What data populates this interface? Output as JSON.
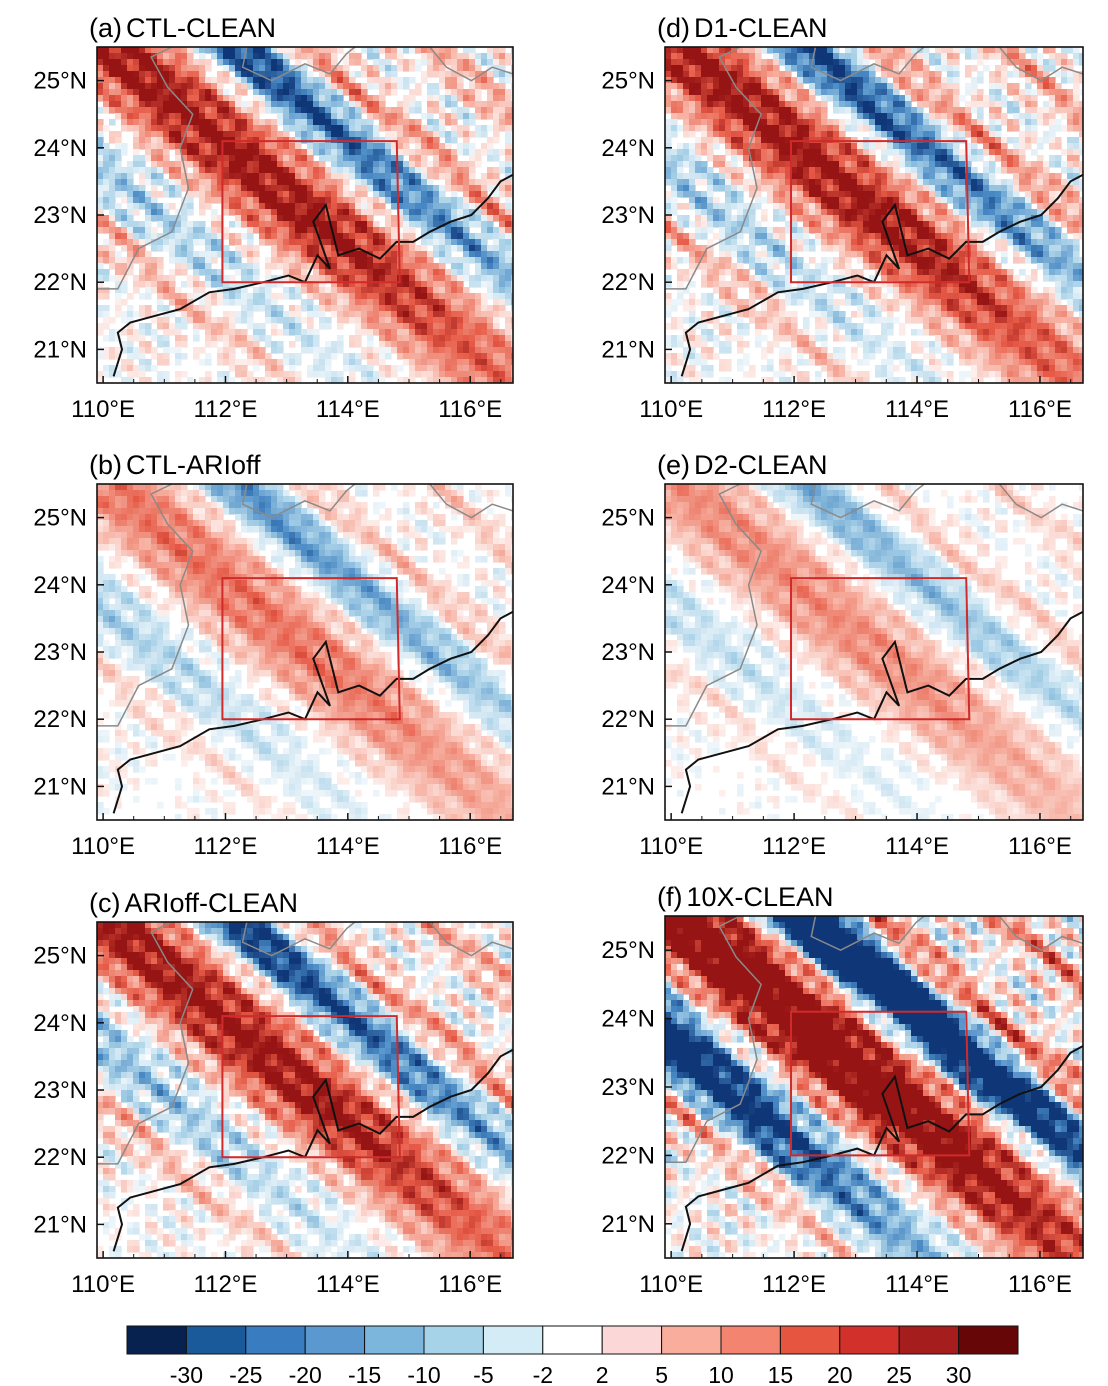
{
  "panels": [
    {
      "letter": "(a)",
      "name": "CTL-CLEAN",
      "intensity": 1.0,
      "blue_bias": 0.0
    },
    {
      "letter": "(b)",
      "name": "CTL-ARIoff",
      "intensity": 0.55,
      "blue_bias": 0.15
    },
    {
      "letter": "(c)",
      "name": "ARIoff-CLEAN",
      "intensity": 1.0,
      "blue_bias": 0.05
    },
    {
      "letter": "(d)",
      "name": "D1-CLEAN",
      "intensity": 1.0,
      "blue_bias": 0.0
    },
    {
      "letter": "(e)",
      "name": "D2-CLEAN",
      "intensity": 0.45,
      "blue_bias": 0.1
    },
    {
      "letter": "(f)",
      "name": "10X-CLEAN",
      "intensity": 1.35,
      "blue_bias": 0.45
    }
  ],
  "axes": {
    "lon_ticks": [
      "110°E",
      "112°E",
      "114°E",
      "116°E"
    ],
    "lon_values": [
      110,
      112,
      114,
      116
    ],
    "lat_ticks": [
      "25°N",
      "24°N",
      "23°N",
      "22°N",
      "21°N"
    ],
    "lat_values": [
      25,
      24,
      23,
      22,
      21
    ],
    "lon_range": [
      109.9,
      116.7
    ],
    "lat_range": [
      20.5,
      25.5
    ]
  },
  "box_region": {
    "lon": [
      111.95,
      114.85
    ],
    "lat": [
      22.0,
      24.1
    ]
  },
  "colorbar": {
    "labels": [
      "-30",
      "-25",
      "-20",
      "-15",
      "-10",
      "-5",
      "-2",
      "2",
      "5",
      "10",
      "15",
      "20",
      "25",
      "30"
    ],
    "colors": [
      "#08224f",
      "#1a5a9a",
      "#3a7cc0",
      "#5a98cf",
      "#7db6dc",
      "#a6d3e8",
      "#d3ecf6",
      "#ffffff",
      "#fcd7d7",
      "#f8ad9d",
      "#f28470",
      "#e6553f",
      "#d2302a",
      "#a51d1c",
      "#660606"
    ]
  }
}
